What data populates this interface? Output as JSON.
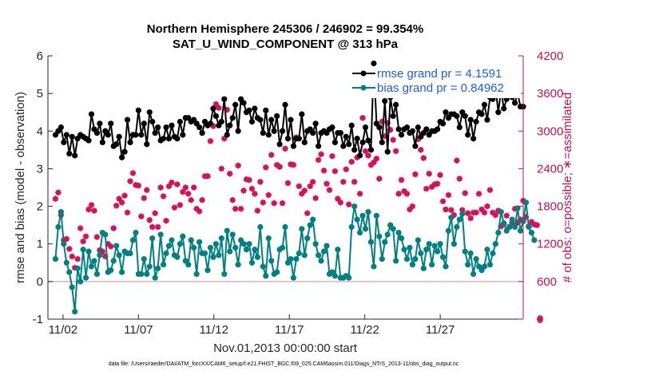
{
  "chart_data": {
    "type": "line",
    "title": "Northern Hemisphere 245306 / 246902 = 99.354%",
    "subtitle": "SAT_U_WIND_COMPONENT @ 313 hPa",
    "xlabel": "Nov.01,2013 00:00:00 start",
    "ylabel": "rmse and bias (model - observation)",
    "ylabel_right": "# of obs: o=possible; ∗=assimilated",
    "footer": "data file: /Users/raeder/DAI/ATM_forcXX/CAM6_setup/f.e21.FHIST_BGC.f09_025.CAM6assim.011/Diags_NTrS_2013-11/obs_diag_output.nc",
    "xlim": [
      1,
      32.5
    ],
    "ylim": [
      -1,
      6
    ],
    "ylim_right": [
      0,
      4200
    ],
    "xticks": [
      2,
      7,
      12,
      17,
      22,
      27
    ],
    "xtick_labels": [
      "11/02",
      "11/07",
      "11/12",
      "11/17",
      "11/22",
      "11/27"
    ],
    "yticks": [
      -1,
      0,
      1,
      2,
      3,
      4,
      5,
      6
    ],
    "yticks_right": [
      0,
      600,
      1200,
      1800,
      2400,
      3000,
      3600,
      4200
    ],
    "legend_position": "top-right",
    "colors": {
      "rmse": "#000000",
      "bias": "#008080",
      "obs": "#d0145a",
      "zero_line": "#e8b0b8"
    },
    "series": [
      {
        "name": "rmse grand pr = 4.1591",
        "color": "#000000",
        "values": [
          3.9,
          4.0,
          4.1,
          3.7,
          3.9,
          3.4,
          3.85,
          3.35,
          3.8,
          3.9,
          3.85,
          3.8,
          3.75,
          4.45,
          4.05,
          3.95,
          4.2,
          3.7,
          4.0,
          3.9,
          4.2,
          3.6,
          3.65,
          3.85,
          3.3,
          3.45,
          4.3,
          3.7,
          3.9,
          3.9,
          4.55,
          3.9,
          4.2,
          3.65,
          4.5,
          4.25,
          3.95,
          4.1,
          3.75,
          3.8,
          4.1,
          3.8,
          4.15,
          3.85,
          3.8,
          4.25,
          3.9,
          4.35,
          4.35,
          4.25,
          4.3,
          4.2,
          4.1,
          3.95,
          4.25,
          4.15,
          4.2,
          4.6,
          4.4,
          4.15,
          4.25,
          4.85,
          3.9,
          4.15,
          4.35,
          4.7,
          4.0,
          4.85,
          4.75,
          4.5,
          4.55,
          4.25,
          4.6,
          4.35,
          4.3,
          3.95,
          4.55,
          3.9,
          4.3,
          4.0,
          4.4,
          3.65,
          4.0,
          4.7,
          3.8,
          4.3,
          3.6,
          3.8,
          3.8,
          4.45,
          3.7,
          4.0,
          4.05,
          3.95,
          4.2,
          3.6,
          3.95,
          4.0,
          3.95,
          4.05,
          4.1,
          3.7,
          3.95,
          3.95,
          3.6,
          3.85,
          3.65,
          4.15,
          3.5,
          3.8,
          3.35,
          3.7,
          4.1,
          3.75,
          3.5,
          5.8,
          4.2,
          4.1,
          3.7,
          4.8,
          3.45,
          4.9,
          4.4,
          4.7,
          4.05,
          3.9,
          4.05,
          4.1,
          3.95,
          4.0,
          3.6,
          4.1,
          3.85,
          3.95,
          4.05,
          3.9,
          4.0,
          4.0,
          4.05,
          4.25,
          4.2,
          4.5,
          4.35,
          4.45,
          4.45,
          4.4,
          4.1,
          4.5,
          4.4,
          3.9,
          4.3,
          3.8,
          4.25,
          4.5,
          4.45,
          4.7,
          4.3,
          4.9,
          4.85,
          5.15,
          4.5,
          5.1,
          4.6,
          4.85,
          5.45,
          4.9,
          4.75,
          5.0,
          4.65,
          4.65
        ]
      },
      {
        "name": "bias grand pr = 0.84962",
        "color": "#008080",
        "values": [
          0.6,
          1.45,
          1.85,
          1.0,
          0.5,
          0.25,
          -0.15,
          -0.8,
          0.35,
          0.0,
          0.85,
          0.1,
          0.8,
          0.4,
          0.55,
          0.2,
          0.7,
          1.3,
          1.25,
          0.25,
          0.3,
          0.55,
          0.95,
          0.7,
          0.25,
          0.8,
          0.75,
          0.75,
          1.1,
          1.3,
          0.2,
          0.2,
          0.6,
          0.2,
          0.4,
          1.15,
          0.1,
          0.35,
          1.25,
          0.45,
          0.75,
          0.95,
          1.1,
          0.7,
          0.65,
          1.0,
          1.2,
          0.55,
          0.45,
          1.1,
          0.9,
          0.2,
          1.05,
          0.75,
          0.75,
          0.3,
          0.9,
          0.65,
          1.0,
          0.7,
          1.15,
          0.2,
          1.35,
          0.8,
          1.25,
          0.9,
          0.45,
          1.1,
          1.0,
          0.85,
          1.0,
          0.5,
          0.85,
          0.65,
          1.45,
          0.4,
          0.15,
          1.15,
          0.55,
          0.2,
          0.25,
          0.85,
          0.9,
          1.45,
          0.5,
          0.6,
          0.1,
          0.6,
          0.75,
          1.4,
          0.7,
          1.15,
          1.5,
          1.65,
          1.0,
          0.7,
          0.55,
          0.8,
          0.95,
          0.2,
          0.25,
          0.15,
          0.85,
          0.1,
          0.1,
          0.15,
          0.1,
          1.45,
          2.0,
          1.65,
          1.3,
          1.75,
          1.4,
          1.85,
          1.05,
          0.4,
          1.75,
          1.2,
          0.6,
          1.05,
          1.25,
          1.5,
          1.4,
          0.55,
          1.3,
          1.15,
          0.85,
          0.6,
          0.9,
          0.45,
          0.6,
          1.1,
          0.75,
          0.35,
          0.85,
          1.0,
          0.45,
          0.95,
          0.8,
          1.0,
          0.65,
          0.4,
          1.35,
          1.7,
          1.0,
          1.45,
          1.65,
          1.8,
          0.8,
          0.45,
          0.75,
          0.2,
          0.6,
          0.4,
          0.3,
          0.4,
          0.85,
          0.45,
          0.75,
          1.0,
          1.3,
          1.85,
          1.55,
          1.35,
          1.45,
          1.65,
          1.45,
          1.95,
          1.35,
          1.6,
          2.1,
          1.45,
          1.3,
          1.1
        ]
      }
    ],
    "obs_possible": [
      1920,
      2020,
      1660,
      1260,
      1280,
      1120,
      1000,
      820,
      960,
      1450,
      1240,
      1320,
      1750,
      1820,
      1730,
      1310,
      1100,
      1080,
      1000,
      1200,
      1160,
      1450,
      1810,
      1920,
      1860,
      1970,
      1700,
      2200,
      2330,
      2140,
      2130,
      1640,
      1930,
      2060,
      1580,
      1470,
      1690,
      1470,
      2100,
      1960,
      1570,
      2120,
      2180,
      1780,
      2150,
      1820,
      2030,
      2100,
      2000,
      1900,
      2100,
      1760,
      1720,
      1900,
      2280,
      2280,
      2840,
      3080,
      3430,
      3370,
      2400,
      2880,
      3340,
      2320,
      1900,
      1760,
      2450,
      1760,
      2050,
      2230,
      2220,
      2080,
      2000,
      1730,
      2190,
      1860,
      2420,
      1980,
      2620,
      1850,
      2460,
      2430,
      1850,
      2720,
      2170,
      2470,
      2460,
      2900,
      2120,
      2000,
      2050,
      1690,
      2120,
      2190,
      1930,
      2540,
      2630,
      2370,
      2160,
      2060,
      2600,
      2360,
      1920,
      1860,
      2190,
      2390,
      1830,
      2510,
      2190,
      2580,
      2000,
      3210,
      2680,
      2610,
      2460,
      2500,
      2560,
      2240,
      3150,
      2920,
      3130,
      3020,
      2860,
      2680,
      2000,
      2220,
      2040,
      2000,
      1750,
      1800,
      2310,
      2870,
      2700,
      2570,
      2080,
      2320,
      2110,
      2150,
      2160,
      2300,
      1880,
      1750,
      1980,
      1740,
      1660,
      2530,
      2240,
      1740,
      2010,
      1690,
      1610,
      1700,
      1700,
      2000,
      1750,
      1700,
      1800,
      2060,
      1700,
      1660,
      1730,
      1480,
      1520,
      1650,
      1470,
      1540,
      1760,
      1540,
      1590,
      1890,
      1630,
      1480,
      1550,
      1510,
      1500,
      0
    ],
    "obs_assimilated": [
      1920,
      2020,
      1660,
      1260,
      1280,
      1120,
      1000,
      820,
      960,
      1450,
      1240,
      1320,
      1750,
      1820,
      1730,
      1310,
      1100,
      1080,
      1000,
      1200,
      1160,
      1450,
      1810,
      1920,
      1860,
      1970,
      1700,
      2200,
      2330,
      2140,
      2130,
      1640,
      1930,
      2060,
      1580,
      1470,
      1690,
      1470,
      2100,
      1960,
      1570,
      2120,
      2180,
      1780,
      2150,
      1820,
      2030,
      2100,
      2000,
      1900,
      2100,
      1760,
      1720,
      1900,
      2280,
      2280,
      2840,
      3080,
      3430,
      3370,
      2400,
      2880,
      3340,
      2320,
      1900,
      1760,
      2450,
      1760,
      2050,
      2230,
      2220,
      2080,
      2000,
      1730,
      2190,
      1860,
      2420,
      1980,
      2620,
      1850,
      2460,
      2430,
      1850,
      2720,
      2170,
      2470,
      2460,
      2900,
      2120,
      2000,
      2050,
      1690,
      2120,
      2190,
      1930,
      2540,
      2630,
      2370,
      2160,
      2060,
      2600,
      2360,
      1920,
      1860,
      2190,
      2390,
      1830,
      2510,
      2190,
      2580,
      2000,
      3210,
      2680,
      2610,
      2460,
      2500,
      2560,
      2240,
      3150,
      2920,
      3130,
      3020,
      2860,
      2680,
      2000,
      2220,
      2040,
      2000,
      1750,
      1800,
      2310,
      2870,
      2700,
      2570,
      2080,
      2320,
      2110,
      2150,
      2160,
      2300,
      1880,
      1750,
      1980,
      1740,
      1660,
      2530,
      2240,
      1740,
      2010,
      1690,
      1610,
      1700,
      1700,
      2000,
      1750,
      1700,
      1800,
      2060,
      1700,
      1660,
      1730,
      1480,
      1520,
      1650,
      1470,
      1540,
      1760,
      1540,
      1590,
      1890,
      1630,
      1480,
      1550,
      1510,
      1500,
      0
    ]
  }
}
